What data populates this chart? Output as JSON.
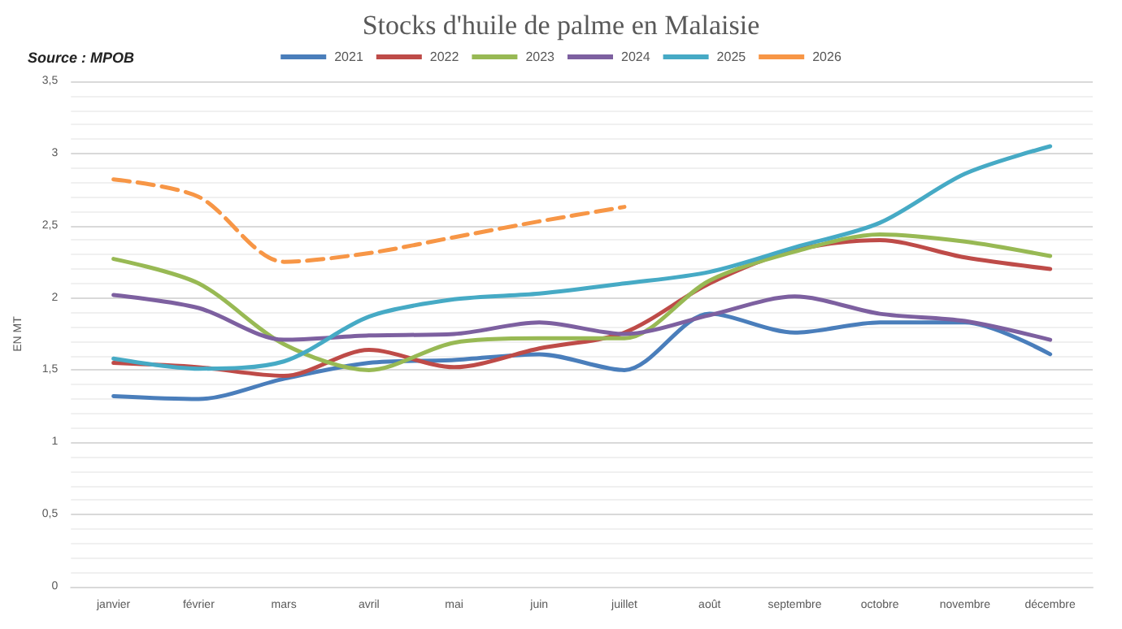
{
  "chart_data": {
    "type": "line",
    "title": "Stocks d'huile de palme en Malaisie",
    "annotations": [
      "Source : MPOB"
    ],
    "ylabel": "EN MT",
    "categories": [
      "janvier",
      "février",
      "mars",
      "avril",
      "mai",
      "juin",
      "juillet",
      "août",
      "septembre",
      "octobre",
      "novembre",
      "décembre"
    ],
    "series": [
      {
        "name": "2021",
        "color": "#4a7ebb",
        "values": [
          1.32,
          1.3,
          1.44,
          1.55,
          1.57,
          1.61,
          1.5,
          1.89,
          1.76,
          1.83,
          1.83,
          1.61
        ]
      },
      {
        "name": "2022",
        "color": "#be4b48",
        "values": [
          1.55,
          1.52,
          1.46,
          1.64,
          1.52,
          1.65,
          1.76,
          2.1,
          2.33,
          2.4,
          2.28,
          2.2
        ]
      },
      {
        "name": "2023",
        "color": "#98b954",
        "values": [
          2.27,
          2.1,
          1.68,
          1.5,
          1.69,
          1.72,
          1.72,
          2.12,
          2.32,
          2.44,
          2.39,
          2.29
        ]
      },
      {
        "name": "2024",
        "color": "#7d60a0",
        "values": [
          2.02,
          1.93,
          1.71,
          1.74,
          1.75,
          1.83,
          1.75,
          1.88,
          2.01,
          1.89,
          1.84,
          1.71
        ]
      },
      {
        "name": "2025",
        "color": "#46aac5",
        "values": [
          1.58,
          1.51,
          1.56,
          1.87,
          1.99,
          2.03,
          2.1,
          2.18,
          2.35,
          2.52,
          2.86,
          3.05
        ]
      },
      {
        "name": "2026",
        "color": "#f79646",
        "line_style": "dashed",
        "values": [
          2.82,
          2.7,
          2.25,
          2.31,
          2.42,
          2.53,
          2.63,
          null,
          null,
          null,
          null,
          null
        ]
      }
    ],
    "ylim": [
      0,
      3.5
    ],
    "yticks": [
      {
        "value": 0,
        "label": "0"
      },
      {
        "value": 0.5,
        "label": "0,5"
      },
      {
        "value": 1,
        "label": "1"
      },
      {
        "value": 1.5,
        "label": "1,5"
      },
      {
        "value": 2,
        "label": "2"
      },
      {
        "value": 2.5,
        "label": "2,5"
      },
      {
        "value": 3,
        "label": "3"
      },
      {
        "value": 3.5,
        "label": "3,5"
      }
    ],
    "grid": "y",
    "legend": "top",
    "marker": "none",
    "line_style": "solid"
  }
}
